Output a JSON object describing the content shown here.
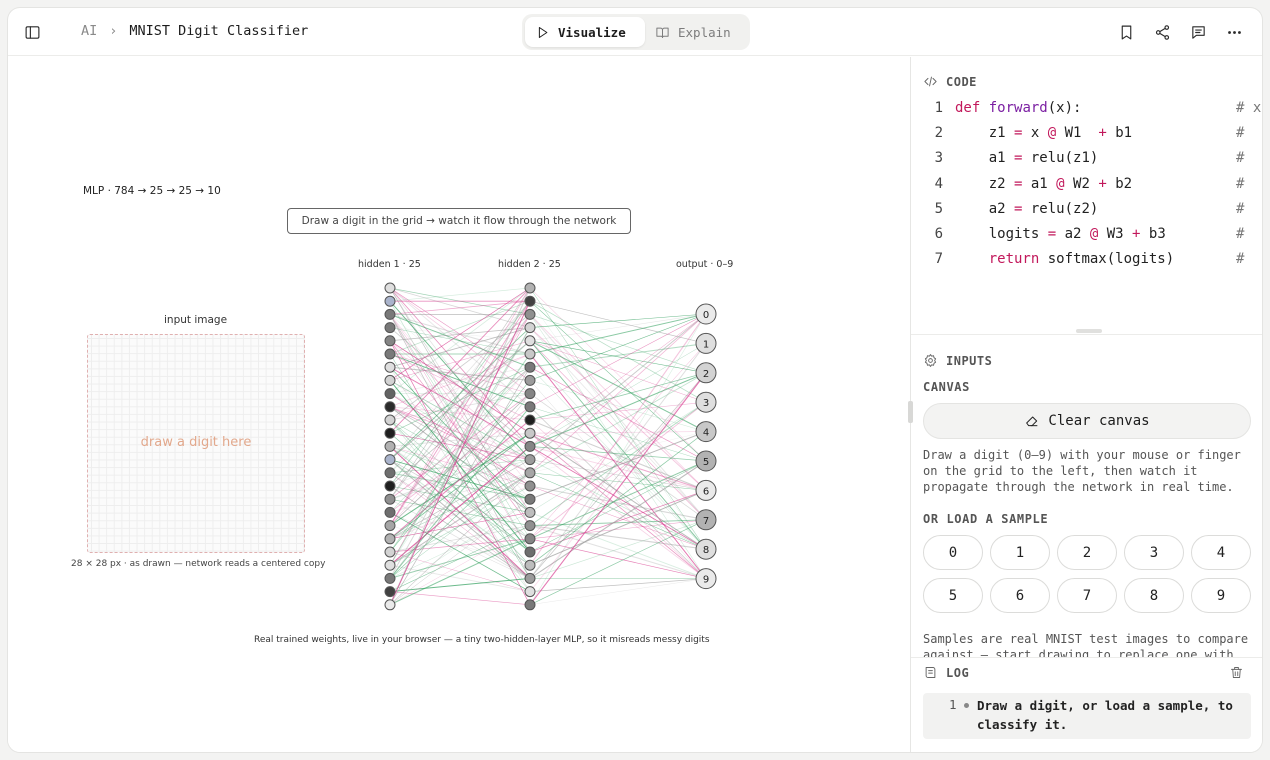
{
  "header": {
    "breadcrumb_root": "AI",
    "breadcrumb_sep": "›",
    "title": "MNIST Digit Classifier",
    "tabs": [
      {
        "label": "Visualize",
        "icon": "play-icon",
        "active": true
      },
      {
        "label": "Explain",
        "icon": "book-icon",
        "active": false
      }
    ],
    "right_icons": [
      "bookmark-icon",
      "share-icon",
      "comment-icon",
      "more-icon"
    ],
    "left_icon": "sidebar-toggle-icon"
  },
  "stage": {
    "mlp_label": "MLP · 784 → 25 → 25 → 10",
    "hint": "Draw a digit in the grid → watch it flow through the network",
    "layer_labels": {
      "hidden1": "hidden 1 · 25",
      "hidden2": "hidden 2 · 25",
      "output": "output · 0–9"
    },
    "input_title": "input image",
    "grid_placeholder": "draw a digit here",
    "grid_caption": "28 × 28 px · as drawn — network reads a centered copy",
    "footer": "Real trained weights, live in your browser — a tiny two-hidden-layer MLP, so it misreads messy digits",
    "output_digits": [
      "0",
      "1",
      "2",
      "3",
      "4",
      "5",
      "6",
      "7",
      "8",
      "9"
    ],
    "hidden1_activations": [
      0.1,
      0.35,
      0.55,
      0.55,
      0.5,
      0.55,
      0.1,
      0.15,
      0.65,
      0.9,
      0.15,
      0.95,
      0.3,
      0.7,
      0.6,
      0.95,
      0.45,
      0.6,
      0.35,
      0.3,
      0.15,
      0.1,
      0.55,
      0.8,
      0.05
    ],
    "hidden2_activations": [
      0.3,
      0.8,
      0.45,
      0.15,
      0.1,
      0.2,
      0.55,
      0.4,
      0.5,
      0.55,
      0.95,
      0.2,
      0.5,
      0.4,
      0.35,
      0.45,
      0.55,
      0.25,
      0.45,
      0.5,
      0.6,
      0.25,
      0.4,
      0.1,
      0.55
    ],
    "output_activations": [
      0.05,
      0.1,
      0.15,
      0.1,
      0.2,
      0.3,
      0.05,
      0.3,
      0.1,
      0.05
    ],
    "colors": {
      "positive": "#2e9e5b",
      "negative": "#d6338a",
      "neutral": "#9a9a9a",
      "grid_border": "#e0b0b0",
      "placeholder": "#e2a88c"
    }
  },
  "code_panel": {
    "heading": "CODE",
    "heading_icon": "code-icon",
    "lines": [
      {
        "n": "1",
        "text": "def forward(x):",
        "comment": "# x"
      },
      {
        "n": "2",
        "text": "    z1 = x @ W1  + b1",
        "comment": "#"
      },
      {
        "n": "3",
        "text": "    a1 = relu(z1)",
        "comment": "#"
      },
      {
        "n": "4",
        "text": "    z2 = a1 @ W2 + b2",
        "comment": "#"
      },
      {
        "n": "5",
        "text": "    a2 = relu(z2)",
        "comment": "#"
      },
      {
        "n": "6",
        "text": "    logits = a2 @ W3 + b3",
        "comment": "#"
      },
      {
        "n": "7",
        "text": "    return softmax(logits)",
        "comment": "#"
      }
    ]
  },
  "inputs_panel": {
    "heading": "INPUTS",
    "heading_icon": "gear-icon",
    "canvas_label": "CANVAS",
    "clear_button": "Clear canvas",
    "clear_icon": "eraser-icon",
    "canvas_desc": "Draw a digit (0–9) with your mouse or finger on the grid to the left, then watch it propagate through the network in real time.",
    "sample_label": "OR LOAD A SAMPLE",
    "samples": [
      "0",
      "1",
      "2",
      "3",
      "4",
      "5",
      "6",
      "7",
      "8",
      "9"
    ],
    "sample_desc": "Samples are real MNIST test images to compare against — start drawing to replace one with"
  },
  "log_panel": {
    "heading": "LOG",
    "heading_icon": "log-icon",
    "entries": [
      {
        "n": "1",
        "text": "Draw a digit, or load a sample, to classify it."
      }
    ]
  }
}
